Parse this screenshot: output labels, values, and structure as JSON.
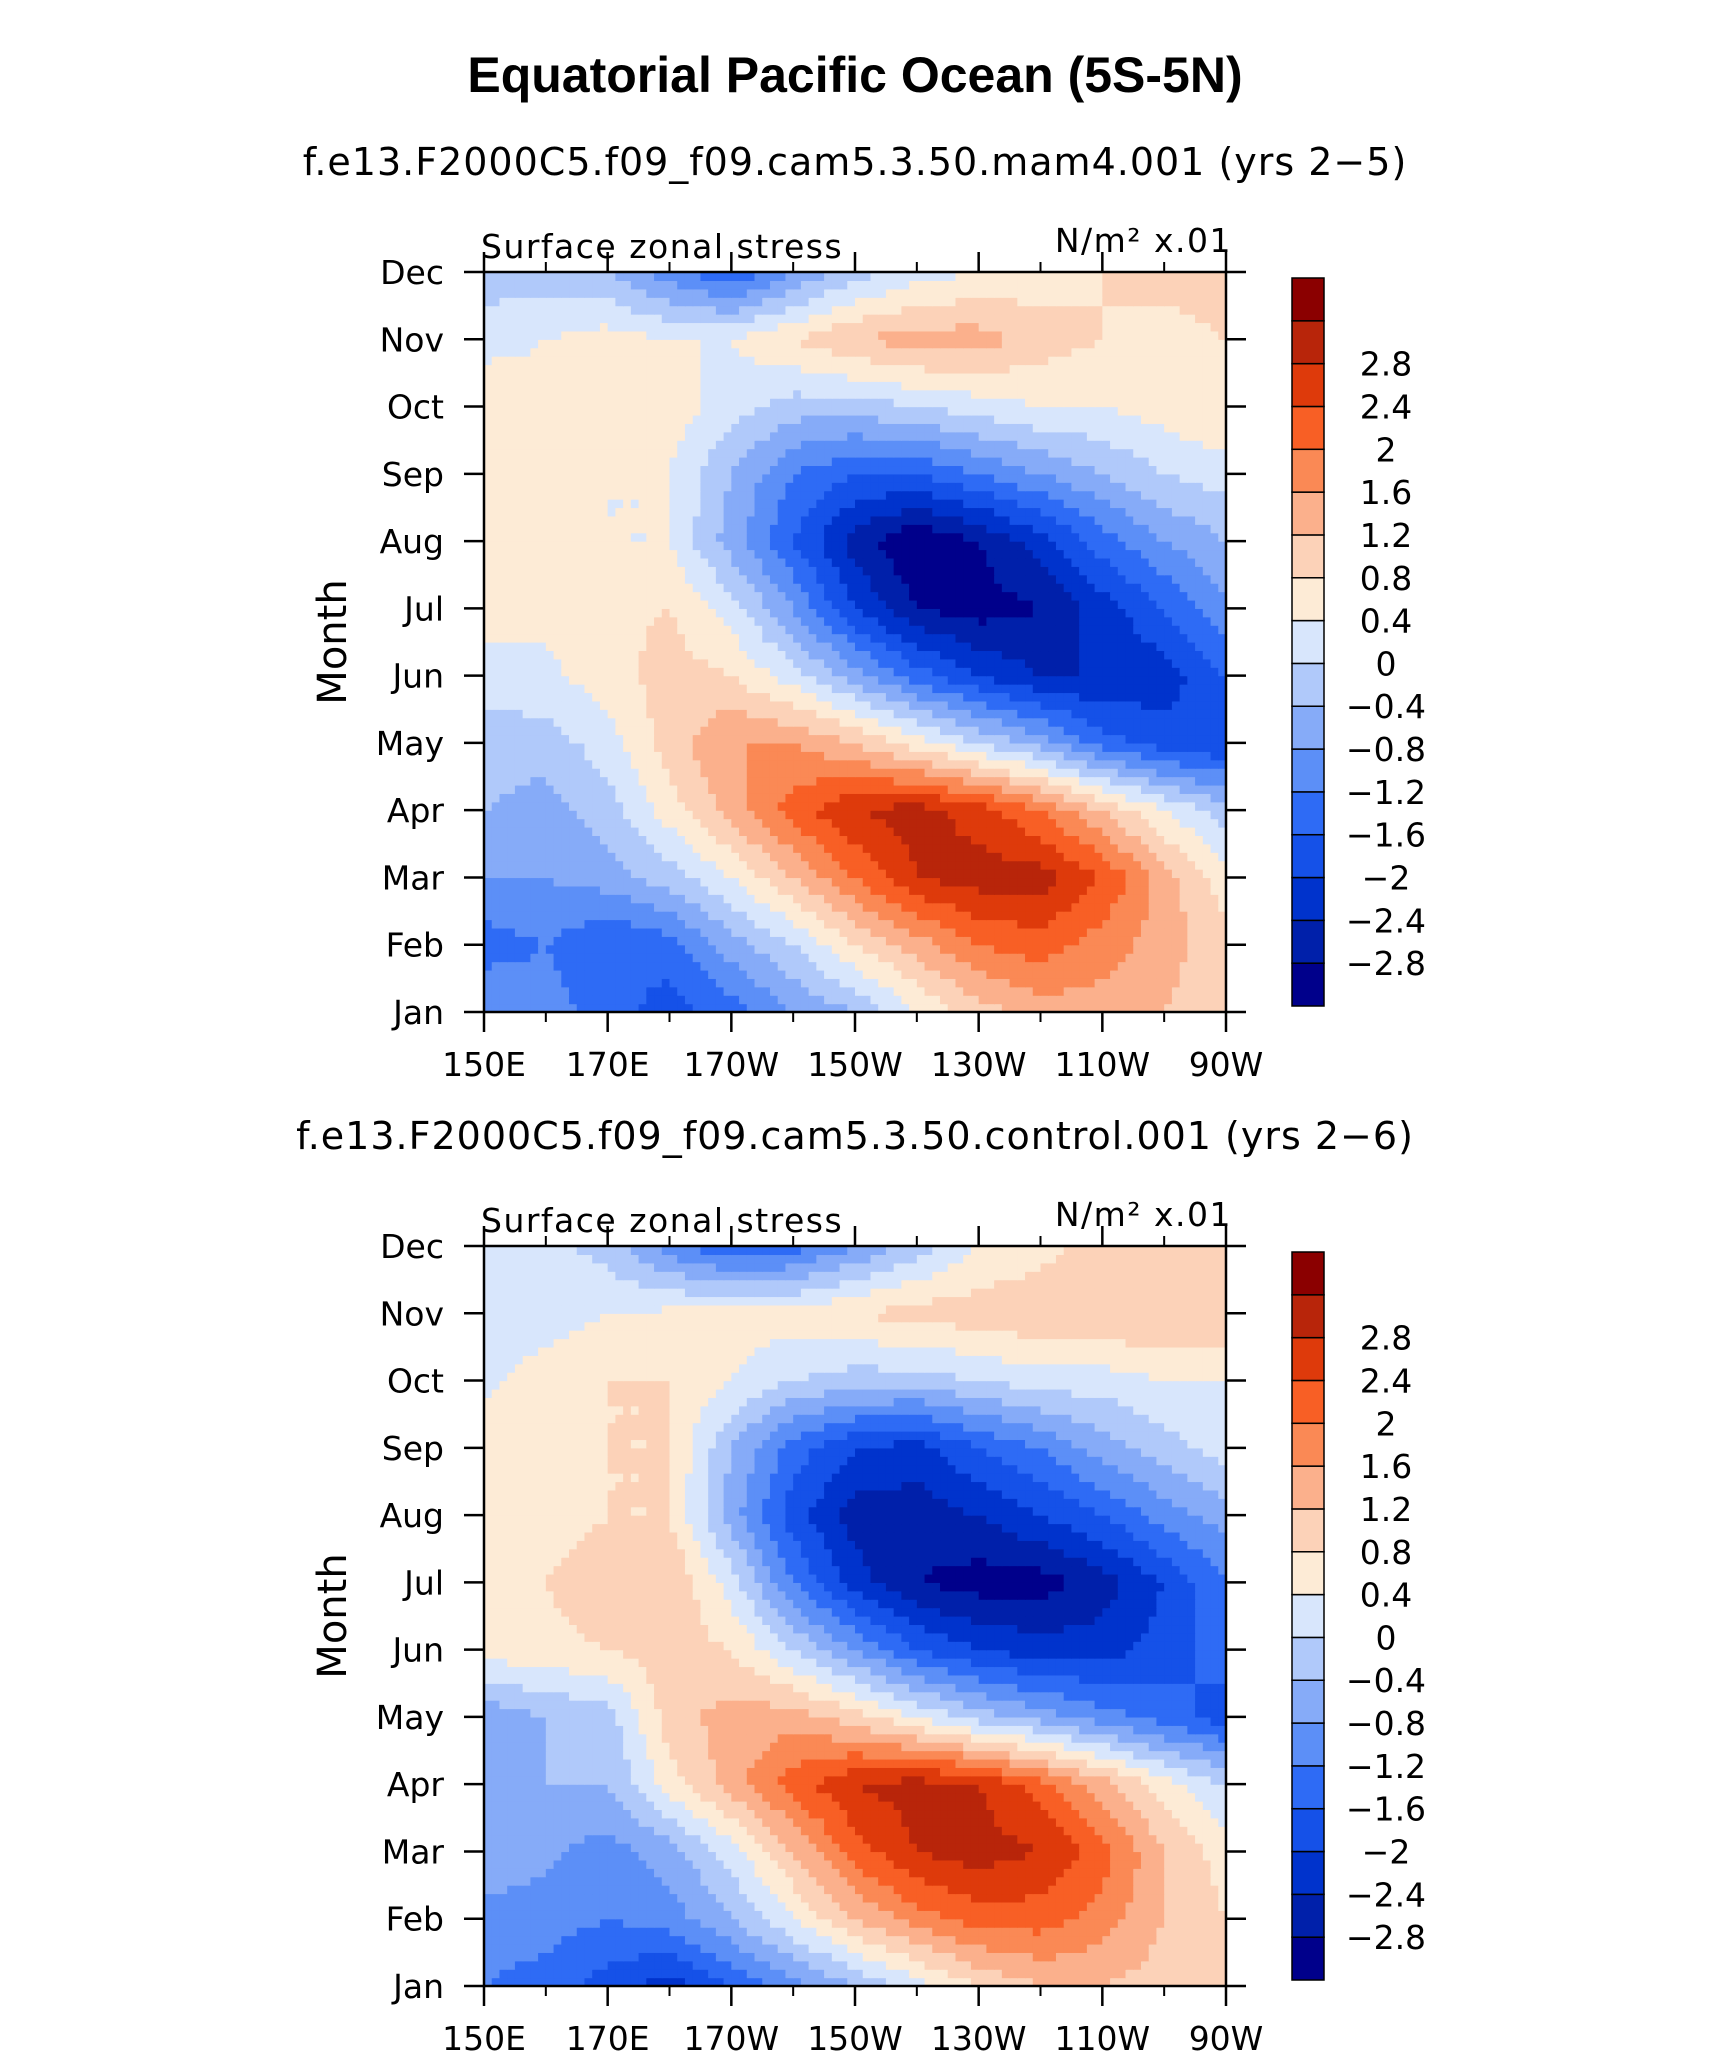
{
  "title": "Equatorial Pacific Ocean (5S-5N)",
  "colorbar": {
    "colors": [
      "#00008B",
      "#0020AA",
      "#0033CC",
      "#1551E8",
      "#2E6BF5",
      "#5C8FF7",
      "#86ABF8",
      "#B0C9FA",
      "#D8E6FC",
      "#FDEBD6",
      "#FCD2B8",
      "#FBB08C",
      "#FA8955",
      "#F85F25",
      "#DE3A0B",
      "#B8250A",
      "#8B0000"
    ],
    "labels": [
      "−2.8",
      "−2.4",
      "−2",
      "−1.6",
      "−1.2",
      "−0.8",
      "−0.4",
      "0",
      "0.4",
      "0.8",
      "1.2",
      "1.6",
      "2",
      "2.4",
      "2.8"
    ]
  },
  "chart_data": [
    {
      "type": "heatmap",
      "subtitle": "f.e13.F2000C5.f09_f09.cam5.3.50.mam4.001 (yrs 2−5)",
      "variable": "Surface zonal stress",
      "units": "N/m² x.01",
      "ylabel": "Month",
      "xlabel": "",
      "xlim": [
        150,
        270
      ],
      "ylim": [
        1,
        12
      ],
      "xticks": [
        "150E",
        "170E",
        "170W",
        "150W",
        "130W",
        "110W",
        "90W"
      ],
      "yticks": [
        "Jan",
        "Feb",
        "Mar",
        "Apr",
        "May",
        "Jun",
        "Jul",
        "Aug",
        "Sep",
        "Oct",
        "Nov",
        "Dec"
      ],
      "levels": [
        -3.2,
        -2.8,
        -2.4,
        -2.0,
        -1.6,
        -1.2,
        -0.8,
        -0.4,
        0,
        0.4,
        0.8,
        1.2,
        1.6,
        2.0,
        2.4,
        2.8,
        3.2
      ],
      "field": {
        "x": [
          150,
          160,
          170,
          180,
          190,
          200,
          210,
          220,
          230,
          240,
          250,
          260,
          270
        ],
        "y": [
          1,
          2,
          3,
          4,
          5,
          6,
          7,
          8,
          9,
          10,
          11,
          12
        ],
        "z": [
          [
            -0.8,
            -1.0,
            -1.4,
            -1.8,
            -1.4,
            -0.8,
            -0.4,
            0.4,
            1.0,
            1.4,
            1.4,
            1.2,
            0.8
          ],
          [
            -1.4,
            -1.2,
            -1.6,
            -1.4,
            -0.6,
            0.0,
            0.8,
            1.4,
            2.0,
            2.2,
            1.8,
            1.4,
            0.9
          ],
          [
            -0.8,
            -0.8,
            -0.6,
            -0.2,
            0.4,
            1.2,
            2.0,
            2.8,
            3.0,
            3.0,
            2.4,
            1.4,
            0.6
          ],
          [
            -0.4,
            -0.6,
            -0.2,
            0.6,
            1.4,
            2.2,
            2.8,
            3.0,
            2.6,
            2.0,
            1.2,
            0.4,
            -0.2
          ],
          [
            -0.2,
            -0.2,
            0.2,
            1.0,
            1.6,
            1.6,
            1.2,
            0.6,
            0.0,
            -0.6,
            -1.4,
            -1.8,
            -2.0
          ],
          [
            0.2,
            0.3,
            0.6,
            1.0,
            0.8,
            0.2,
            -0.6,
            -1.4,
            -2.0,
            -2.4,
            -2.4,
            -2.2,
            -1.6
          ],
          [
            0.6,
            0.5,
            0.7,
            0.8,
            0.2,
            -0.8,
            -2.0,
            -2.8,
            -3.0,
            -2.8,
            -2.2,
            -1.6,
            -0.9
          ],
          [
            0.5,
            0.4,
            0.4,
            0.4,
            -0.6,
            -1.6,
            -2.6,
            -3.2,
            -2.8,
            -2.2,
            -1.4,
            -0.8,
            -0.4
          ],
          [
            0.5,
            0.5,
            0.4,
            0.4,
            -0.4,
            -1.2,
            -1.6,
            -1.6,
            -1.2,
            -0.8,
            -0.4,
            0.0,
            0.2
          ],
          [
            0.8,
            0.6,
            0.8,
            0.6,
            0.2,
            -0.2,
            -0.2,
            0.0,
            0.2,
            0.4,
            0.4,
            0.6,
            0.8
          ],
          [
            0.2,
            0.4,
            0.6,
            0.4,
            0.4,
            0.8,
            1.2,
            1.4,
            1.4,
            1.0,
            0.8,
            0.6,
            0.8
          ],
          [
            -0.2,
            -0.2,
            -0.4,
            -1.0,
            -1.6,
            -0.8,
            -0.2,
            0.2,
            0.4,
            0.6,
            0.8,
            1.0,
            1.0
          ]
        ]
      }
    },
    {
      "type": "heatmap",
      "subtitle": "f.e13.F2000C5.f09_f09.cam5.3.50.control.001 (yrs 2−6)",
      "variable": "Surface zonal stress",
      "units": "N/m² x.01",
      "ylabel": "Month",
      "xlabel": "",
      "xlim": [
        150,
        270
      ],
      "ylim": [
        1,
        12
      ],
      "xticks": [
        "150E",
        "170E",
        "170W",
        "150W",
        "130W",
        "110W",
        "90W"
      ],
      "yticks": [
        "Jan",
        "Feb",
        "Mar",
        "Apr",
        "May",
        "Jun",
        "Jul",
        "Aug",
        "Sep",
        "Oct",
        "Nov",
        "Dec"
      ],
      "levels": [
        -3.2,
        -2.8,
        -2.4,
        -2.0,
        -1.6,
        -1.2,
        -0.8,
        -0.4,
        0,
        0.4,
        0.8,
        1.2,
        1.6,
        2.0,
        2.4,
        2.8,
        3.2
      ],
      "field": {
        "x": [
          150,
          160,
          170,
          180,
          190,
          200,
          210,
          220,
          230,
          240,
          250,
          260,
          270
        ],
        "y": [
          1,
          2,
          3,
          4,
          5,
          6,
          7,
          8,
          9,
          10,
          11,
          12
        ],
        "z": [
          [
            -1.2,
            -1.4,
            -1.8,
            -2.2,
            -1.6,
            -1.0,
            -0.4,
            0.2,
            0.8,
            1.2,
            1.2,
            1.0,
            0.8
          ],
          [
            -0.9,
            -1.0,
            -1.2,
            -1.0,
            -0.4,
            0.4,
            1.2,
            1.8,
            2.2,
            2.2,
            1.8,
            1.2,
            0.8
          ],
          [
            -0.6,
            -0.7,
            -1.0,
            -0.6,
            0.2,
            1.2,
            2.2,
            2.8,
            3.0,
            2.8,
            2.2,
            1.2,
            0.6
          ],
          [
            -0.6,
            -0.4,
            -0.4,
            0.6,
            1.4,
            2.2,
            2.8,
            3.0,
            2.8,
            2.2,
            1.4,
            0.6,
            0.0
          ],
          [
            -0.7,
            -0.4,
            -0.2,
            1.0,
            1.4,
            1.4,
            1.0,
            0.4,
            -0.2,
            -0.6,
            -1.0,
            -1.4,
            -1.8
          ],
          [
            0.6,
            0.7,
            0.8,
            1.0,
            0.8,
            0.0,
            -0.8,
            -1.6,
            -2.0,
            -2.2,
            -2.2,
            -1.8,
            -1.4
          ],
          [
            0.8,
            0.8,
            1.0,
            1.2,
            0.2,
            -1.2,
            -2.2,
            -2.8,
            -3.0,
            -3.0,
            -2.6,
            -2.0,
            -1.2
          ],
          [
            0.5,
            0.6,
            0.8,
            0.8,
            -0.6,
            -1.8,
            -2.6,
            -2.6,
            -2.4,
            -2.0,
            -1.6,
            -1.0,
            -0.6
          ],
          [
            0.6,
            0.6,
            0.8,
            0.8,
            -0.4,
            -1.4,
            -2.0,
            -2.2,
            -1.6,
            -1.2,
            -0.6,
            -0.2,
            0.2
          ],
          [
            0.3,
            0.6,
            0.8,
            0.8,
            0.4,
            0.0,
            -0.2,
            -0.2,
            0.0,
            0.2,
            0.2,
            0.4,
            0.4
          ],
          [
            0.2,
            0.2,
            0.4,
            0.5,
            0.6,
            0.6,
            0.8,
            1.0,
            1.0,
            1.2,
            1.2,
            1.2,
            1.2
          ],
          [
            0.2,
            0.2,
            -0.2,
            -1.0,
            -1.6,
            -1.4,
            -0.8,
            -0.2,
            0.4,
            0.6,
            1.0,
            1.0,
            1.2
          ]
        ]
      }
    }
  ]
}
